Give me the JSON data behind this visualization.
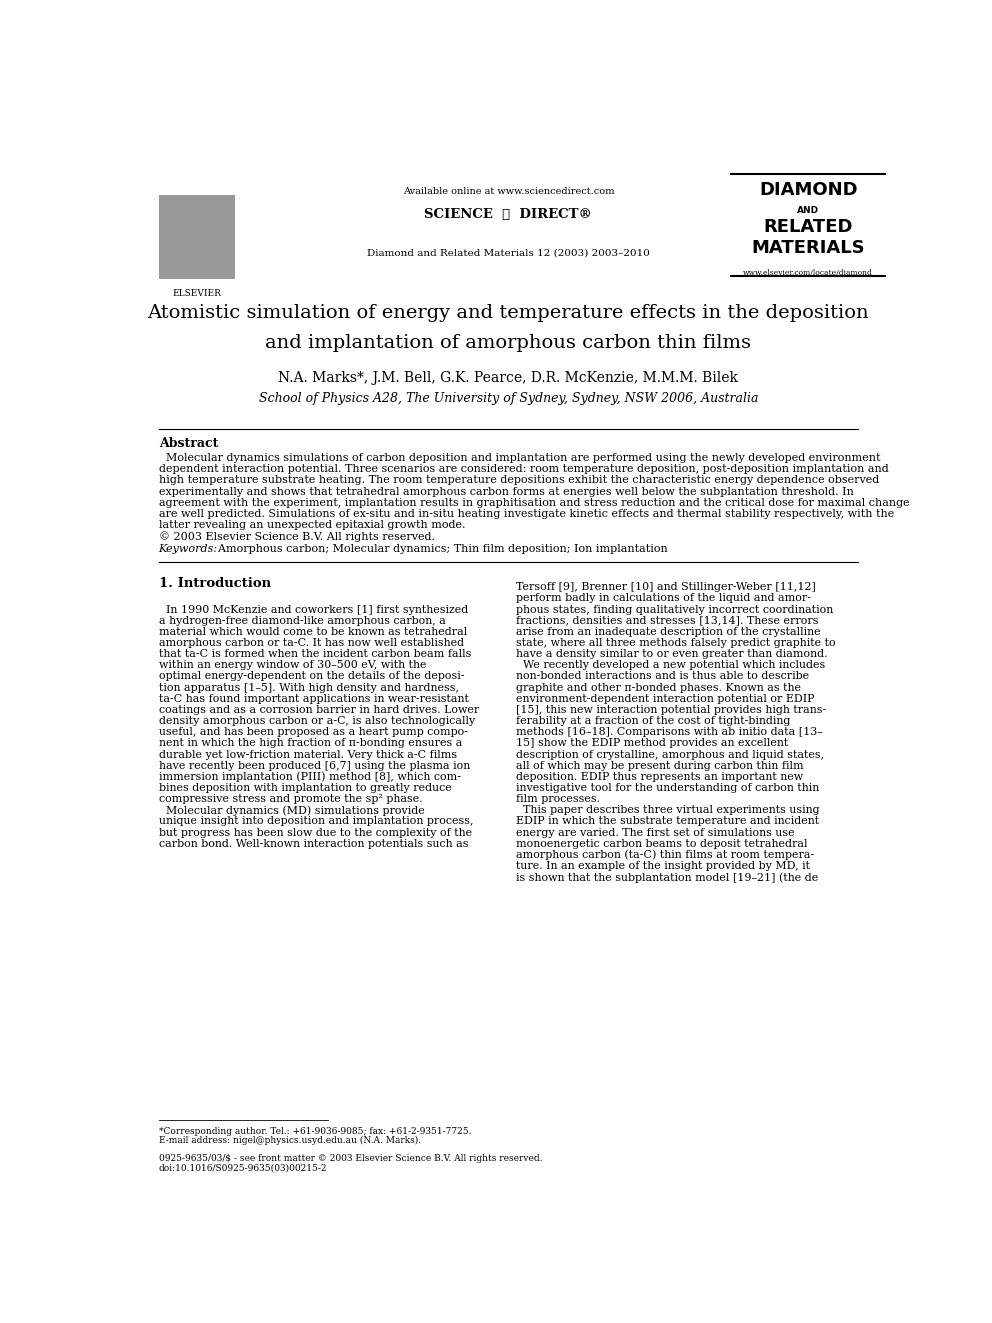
{
  "page_width": 9.92,
  "page_height": 13.23,
  "bg_color": "#ffffff",
  "header_available": "Available online at www.sciencedirect.com",
  "header_sciencedirect": "SCIENCE  ⓐ  DIRECT®",
  "header_journal": "Diamond and Related Materials 12 (2003) 2003–2010",
  "header_elsevier": "ELSEVIER",
  "diamond_line1": "DIAMOND",
  "diamond_and": "AND",
  "diamond_line2": "RELATED",
  "diamond_line3": "MATERIALS",
  "diamond_website": "www.elsevier.com/locate/diamond",
  "title_line1": "Atomistic simulation of energy and temperature effects in the deposition",
  "title_line2": "and implantation of amorphous carbon thin films",
  "authors": "N.A. Marks*, J.M. Bell, G.K. Pearce, D.R. McKenzie, M.M.M. Bilek",
  "affiliation": "School of Physics A28, The University of Sydney, Sydney, NSW 2006, Australia",
  "abstract_label": "Abstract",
  "abstract_lines": [
    "  Molecular dynamics simulations of carbon deposition and implantation are performed using the newly developed environment",
    "dependent interaction potential. Three scenarios are considered: room temperature deposition, post-deposition implantation and",
    "high temperature substrate heating. The room temperature depositions exhibit the characteristic energy dependence observed",
    "experimentally and shows that tetrahedral amorphous carbon forms at energies well below the subplantation threshold. In",
    "agreement with the experiment, implantation results in graphitisation and stress reduction and the critical dose for maximal change",
    "are well predicted. Simulations of ex-situ and in-situ heating investigate kinetic effects and thermal stability respectively, with the",
    "latter revealing an unexpected epitaxial growth mode.",
    "© 2003 Elsevier Science B.V. All rights reserved."
  ],
  "keywords_label": "Keywords:",
  "keywords_text": "  Amorphous carbon; Molecular dynamics; Thin film deposition; Ion implantation",
  "section1_title": "1. Introduction",
  "col1_lines": [
    "",
    "  In 1990 McKenzie and coworkers [1] first synthesized",
    "a hydrogen-free diamond-like amorphous carbon, a",
    "material which would come to be known as tetrahedral",
    "amorphous carbon or ta-C. It has now well established",
    "that ta-C is formed when the incident carbon beam falls",
    "within an energy window of 30–500 eV, with the",
    "optimal energy-dependent on the details of the deposi-",
    "tion apparatus [1–5]. With high density and hardness,",
    "ta-C has found important applications in wear-resistant",
    "coatings and as a corrosion barrier in hard drives. Lower",
    "density amorphous carbon or a-C, is also technologically",
    "useful, and has been proposed as a heart pump compo-",
    "nent in which the high fraction of π-bonding ensures a",
    "durable yet low-friction material. Very thick a-C films",
    "have recently been produced [6,7] using the plasma ion",
    "immersion implantation (PIII) method [8], which com-",
    "bines deposition with implantation to greatly reduce",
    "compressive stress and promote the sp² phase.",
    "  Molecular dynamics (MD) simulations provide",
    "unique insight into deposition and implantation process,",
    "but progress has been slow due to the complexity of the",
    "carbon bond. Well-known interaction potentials such as"
  ],
  "col2_lines": [
    "Tersoff [9], Brenner [10] and Stillinger-Weber [11,12]",
    "perform badly in calculations of the liquid and amor-",
    "phous states, finding qualitatively incorrect coordination",
    "fractions, densities and stresses [13,14]. These errors",
    "arise from an inadequate description of the crystalline",
    "state, where all three methods falsely predict graphite to",
    "have a density similar to or even greater than diamond.",
    "  We recently developed a new potential which includes",
    "non-bonded interactions and is thus able to describe",
    "graphite and other π-bonded phases. Known as the",
    "environment-dependent interaction potential or EDIP",
    "[15], this new interaction potential provides high trans-",
    "ferability at a fraction of the cost of tight-binding",
    "methods [16–18]. Comparisons with ab initio data [13–",
    "15] show the EDIP method provides an excellent",
    "description of crystalline, amorphous and liquid states,",
    "all of which may be present during carbon thin film",
    "deposition. EDIP thus represents an important new",
    "investigative tool for the understanding of carbon thin",
    "film processes.",
    "  This paper describes three virtual experiments using",
    "EDIP in which the substrate temperature and incident",
    "energy are varied. The first set of simulations use",
    "monoenergetic carbon beams to deposit tetrahedral",
    "amorphous carbon (ta-C) thin films at room tempera-",
    "ture. In an example of the insight provided by MD, it",
    "is shown that the subplantation model [19–21] (the de"
  ],
  "footnote_star": "*Corresponding author. Tel.: +61-9036-9085; fax: +61-2-9351-7725.",
  "footnote_email": "E-mail address: nigel@physics.usyd.edu.au (N.A. Marks).",
  "footer_line1": "0925-9635/03/$ - see front matter © 2003 Elsevier Science B.V. All rights reserved.",
  "footer_line2": "doi:10.1016/S0925-9635(03)00215-2"
}
